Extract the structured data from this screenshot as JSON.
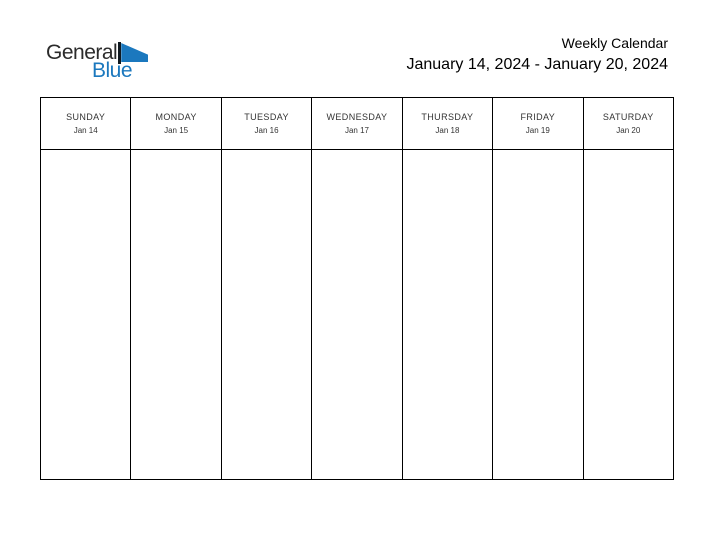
{
  "logo": {
    "part1": "General",
    "part2": "Blue"
  },
  "header": {
    "title": "Weekly Calendar",
    "date_range": "January 14, 2024 - January 20, 2024"
  },
  "calendar": {
    "days": [
      {
        "name": "SUNDAY",
        "date": "Jan 14"
      },
      {
        "name": "MONDAY",
        "date": "Jan 15"
      },
      {
        "name": "TUESDAY",
        "date": "Jan 16"
      },
      {
        "name": "WEDNESDAY",
        "date": "Jan 17"
      },
      {
        "name": "THURSDAY",
        "date": "Jan 18"
      },
      {
        "name": "FRIDAY",
        "date": "Jan 19"
      },
      {
        "name": "SATURDAY",
        "date": "Jan 20"
      }
    ]
  },
  "colors": {
    "brand_blue": "#1b78be",
    "logo_dark": "#2b2b2b",
    "table_border": "#000000",
    "day_text": "#333333"
  }
}
